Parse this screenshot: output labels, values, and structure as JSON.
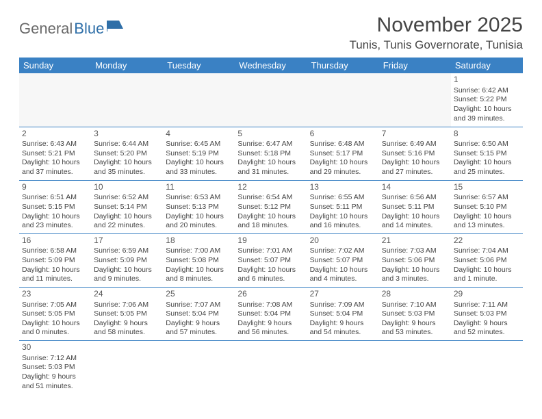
{
  "logo": {
    "word1": "General",
    "word2": "Blue"
  },
  "title": "November 2025",
  "location": "Tunis, Tunis Governorate, Tunisia",
  "colors": {
    "header_bg": "#3a81c4",
    "header_text": "#ffffff",
    "logo_gray": "#6a6a6a",
    "logo_blue": "#2f6fa8",
    "text": "#444444",
    "border": "#3a81c4"
  },
  "columns": [
    "Sunday",
    "Monday",
    "Tuesday",
    "Wednesday",
    "Thursday",
    "Friday",
    "Saturday"
  ],
  "weeks": [
    [
      null,
      null,
      null,
      null,
      null,
      null,
      {
        "n": "1",
        "sr": "Sunrise: 6:42 AM",
        "ss": "Sunset: 5:22 PM",
        "d1": "Daylight: 10 hours",
        "d2": "and 39 minutes."
      }
    ],
    [
      {
        "n": "2",
        "sr": "Sunrise: 6:43 AM",
        "ss": "Sunset: 5:21 PM",
        "d1": "Daylight: 10 hours",
        "d2": "and 37 minutes."
      },
      {
        "n": "3",
        "sr": "Sunrise: 6:44 AM",
        "ss": "Sunset: 5:20 PM",
        "d1": "Daylight: 10 hours",
        "d2": "and 35 minutes."
      },
      {
        "n": "4",
        "sr": "Sunrise: 6:45 AM",
        "ss": "Sunset: 5:19 PM",
        "d1": "Daylight: 10 hours",
        "d2": "and 33 minutes."
      },
      {
        "n": "5",
        "sr": "Sunrise: 6:47 AM",
        "ss": "Sunset: 5:18 PM",
        "d1": "Daylight: 10 hours",
        "d2": "and 31 minutes."
      },
      {
        "n": "6",
        "sr": "Sunrise: 6:48 AM",
        "ss": "Sunset: 5:17 PM",
        "d1": "Daylight: 10 hours",
        "d2": "and 29 minutes."
      },
      {
        "n": "7",
        "sr": "Sunrise: 6:49 AM",
        "ss": "Sunset: 5:16 PM",
        "d1": "Daylight: 10 hours",
        "d2": "and 27 minutes."
      },
      {
        "n": "8",
        "sr": "Sunrise: 6:50 AM",
        "ss": "Sunset: 5:15 PM",
        "d1": "Daylight: 10 hours",
        "d2": "and 25 minutes."
      }
    ],
    [
      {
        "n": "9",
        "sr": "Sunrise: 6:51 AM",
        "ss": "Sunset: 5:15 PM",
        "d1": "Daylight: 10 hours",
        "d2": "and 23 minutes."
      },
      {
        "n": "10",
        "sr": "Sunrise: 6:52 AM",
        "ss": "Sunset: 5:14 PM",
        "d1": "Daylight: 10 hours",
        "d2": "and 22 minutes."
      },
      {
        "n": "11",
        "sr": "Sunrise: 6:53 AM",
        "ss": "Sunset: 5:13 PM",
        "d1": "Daylight: 10 hours",
        "d2": "and 20 minutes."
      },
      {
        "n": "12",
        "sr": "Sunrise: 6:54 AM",
        "ss": "Sunset: 5:12 PM",
        "d1": "Daylight: 10 hours",
        "d2": "and 18 minutes."
      },
      {
        "n": "13",
        "sr": "Sunrise: 6:55 AM",
        "ss": "Sunset: 5:11 PM",
        "d1": "Daylight: 10 hours",
        "d2": "and 16 minutes."
      },
      {
        "n": "14",
        "sr": "Sunrise: 6:56 AM",
        "ss": "Sunset: 5:11 PM",
        "d1": "Daylight: 10 hours",
        "d2": "and 14 minutes."
      },
      {
        "n": "15",
        "sr": "Sunrise: 6:57 AM",
        "ss": "Sunset: 5:10 PM",
        "d1": "Daylight: 10 hours",
        "d2": "and 13 minutes."
      }
    ],
    [
      {
        "n": "16",
        "sr": "Sunrise: 6:58 AM",
        "ss": "Sunset: 5:09 PM",
        "d1": "Daylight: 10 hours",
        "d2": "and 11 minutes."
      },
      {
        "n": "17",
        "sr": "Sunrise: 6:59 AM",
        "ss": "Sunset: 5:09 PM",
        "d1": "Daylight: 10 hours",
        "d2": "and 9 minutes."
      },
      {
        "n": "18",
        "sr": "Sunrise: 7:00 AM",
        "ss": "Sunset: 5:08 PM",
        "d1": "Daylight: 10 hours",
        "d2": "and 8 minutes."
      },
      {
        "n": "19",
        "sr": "Sunrise: 7:01 AM",
        "ss": "Sunset: 5:07 PM",
        "d1": "Daylight: 10 hours",
        "d2": "and 6 minutes."
      },
      {
        "n": "20",
        "sr": "Sunrise: 7:02 AM",
        "ss": "Sunset: 5:07 PM",
        "d1": "Daylight: 10 hours",
        "d2": "and 4 minutes."
      },
      {
        "n": "21",
        "sr": "Sunrise: 7:03 AM",
        "ss": "Sunset: 5:06 PM",
        "d1": "Daylight: 10 hours",
        "d2": "and 3 minutes."
      },
      {
        "n": "22",
        "sr": "Sunrise: 7:04 AM",
        "ss": "Sunset: 5:06 PM",
        "d1": "Daylight: 10 hours",
        "d2": "and 1 minute."
      }
    ],
    [
      {
        "n": "23",
        "sr": "Sunrise: 7:05 AM",
        "ss": "Sunset: 5:05 PM",
        "d1": "Daylight: 10 hours",
        "d2": "and 0 minutes."
      },
      {
        "n": "24",
        "sr": "Sunrise: 7:06 AM",
        "ss": "Sunset: 5:05 PM",
        "d1": "Daylight: 9 hours",
        "d2": "and 58 minutes."
      },
      {
        "n": "25",
        "sr": "Sunrise: 7:07 AM",
        "ss": "Sunset: 5:04 PM",
        "d1": "Daylight: 9 hours",
        "d2": "and 57 minutes."
      },
      {
        "n": "26",
        "sr": "Sunrise: 7:08 AM",
        "ss": "Sunset: 5:04 PM",
        "d1": "Daylight: 9 hours",
        "d2": "and 56 minutes."
      },
      {
        "n": "27",
        "sr": "Sunrise: 7:09 AM",
        "ss": "Sunset: 5:04 PM",
        "d1": "Daylight: 9 hours",
        "d2": "and 54 minutes."
      },
      {
        "n": "28",
        "sr": "Sunrise: 7:10 AM",
        "ss": "Sunset: 5:03 PM",
        "d1": "Daylight: 9 hours",
        "d2": "and 53 minutes."
      },
      {
        "n": "29",
        "sr": "Sunrise: 7:11 AM",
        "ss": "Sunset: 5:03 PM",
        "d1": "Daylight: 9 hours",
        "d2": "and 52 minutes."
      }
    ],
    [
      {
        "n": "30",
        "sr": "Sunrise: 7:12 AM",
        "ss": "Sunset: 5:03 PM",
        "d1": "Daylight: 9 hours",
        "d2": "and 51 minutes."
      },
      null,
      null,
      null,
      null,
      null,
      null
    ]
  ]
}
